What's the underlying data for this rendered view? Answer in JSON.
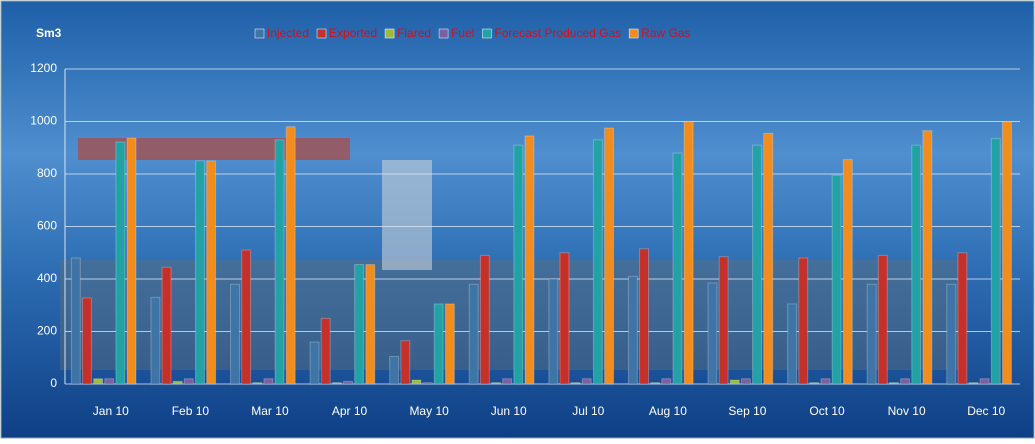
{
  "chart_data": {
    "type": "bar",
    "y_label": "Sm3",
    "categories": [
      "Jan 10",
      "Feb 10",
      "Mar 10",
      "Apr 10",
      "May 10",
      "Jun 10",
      "Jul 10",
      "Aug 10",
      "Sep 10",
      "Oct 10",
      "Nov 10",
      "Dec 10"
    ],
    "series": [
      {
        "name": "Injected",
        "color": "#3f75a6",
        "values": [
          480,
          330,
          380,
          160,
          105,
          380,
          400,
          410,
          385,
          305,
          380,
          380
        ]
      },
      {
        "name": "Exported",
        "color": "#c4312b",
        "values": [
          328,
          445,
          510,
          250,
          165,
          490,
          500,
          515,
          485,
          480,
          490,
          500
        ]
      },
      {
        "name": "Flared",
        "color": "#9cbc3a",
        "values": [
          20,
          10,
          5,
          5,
          15,
          5,
          5,
          5,
          15,
          5,
          5,
          5
        ]
      },
      {
        "name": "Fuel",
        "color": "#7d5f9e",
        "values": [
          20,
          20,
          20,
          10,
          5,
          20,
          20,
          20,
          20,
          20,
          20,
          20
        ]
      },
      {
        "name": "Forecast Produced Gas",
        "color": "#23a2a6",
        "values": [
          922,
          850,
          930,
          455,
          305,
          910,
          930,
          880,
          910,
          795,
          910,
          935
        ]
      },
      {
        "name": "Raw Gas",
        "color": "#f28c1c",
        "values": [
          937,
          850,
          980,
          455,
          305,
          945,
          975,
          1000,
          955,
          855,
          965,
          1000
        ]
      }
    ],
    "ylim": [
      0,
      1200
    ],
    "yticks": [
      0,
      200,
      400,
      600,
      800,
      1000,
      1200
    ],
    "grid": true
  }
}
